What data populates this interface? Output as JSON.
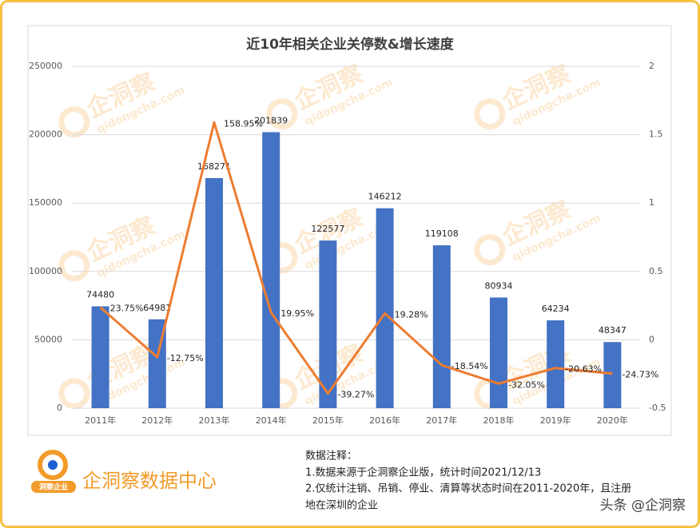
{
  "chart_data": {
    "type": "bar",
    "title": "近10年相关企业关停数&增长速度",
    "categories": [
      "2011年",
      "2012年",
      "2013年",
      "2014年",
      "2015年",
      "2016年",
      "2017年",
      "2018年",
      "2019年",
      "2020年"
    ],
    "series": [
      {
        "type": "bar",
        "color": "#4472c4",
        "values": [
          74480,
          64981,
          168271,
          201839,
          122577,
          146212,
          119108,
          80934,
          64234,
          48347
        ]
      },
      {
        "type": "line",
        "axis": "y2",
        "color": "#ed7d31",
        "values": [
          0.2375,
          -0.1275,
          1.5895,
          0.1995,
          -0.3927,
          0.1928,
          -0.1854,
          -0.3205,
          -0.2063,
          -0.2473
        ],
        "value_labels": [
          "23.75%",
          "-12.75%",
          "158.95%",
          "19.95%",
          "-39.27%",
          "19.28%",
          "-18.54%",
          "-32.05%",
          "-20.63%",
          "-24.73%"
        ]
      }
    ],
    "ylim": [
      0,
      250000
    ],
    "yticks": [
      0,
      50000,
      100000,
      150000,
      200000,
      250000
    ],
    "y2lim": [
      -0.5,
      2
    ],
    "y2ticks": [
      -0.5,
      0,
      0.5,
      1,
      1.5,
      2
    ],
    "grid": true
  },
  "watermark": {
    "name": "企洞察",
    "url": "qidongcha.com"
  },
  "footer": {
    "logo_text": "洞察企业",
    "brand": "企洞察数据中心",
    "notes": [
      "数据注释：",
      "1.数据来源于企洞察企业版，统计时间2021/12/13",
      "2.仅统计注销、吊销、停业、清算等状态时间在2011-2020年，且注册",
      "地在深圳的企业"
    ],
    "credit": "头条 @企洞察"
  }
}
